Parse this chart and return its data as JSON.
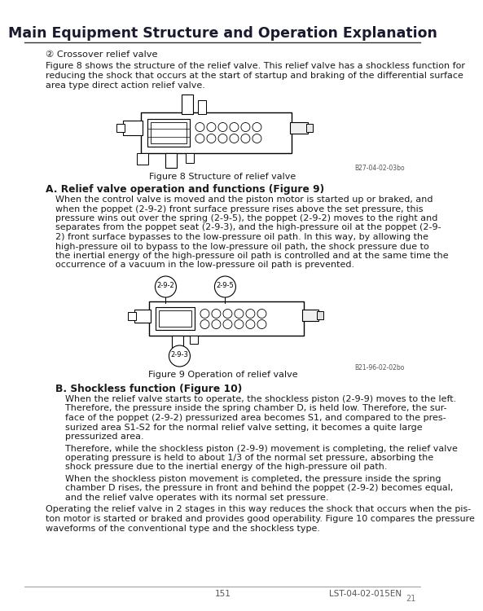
{
  "title": "Main Equipment Structure and Operation Explanation",
  "bg_color": "#ffffff",
  "text_color": "#1a1a1a",
  "title_color": "#1a1a2e",
  "page_number": "151",
  "doc_ref": "LST-04-02-015EN",
  "page_num_right": "21",
  "section_number": "② Crossover relief valve",
  "para1_line1": "Figure 8 shows the structure of the relief valve. This relief valve has a shockless function for",
  "para1_line2": "reducing the shock that occurs at the start of startup and braking of the differential surface",
  "para1_line3": "area type direct action relief valve.",
  "fig8_caption": "Figure 8 Structure of relief valve",
  "fig8_ref": "B27-04-02-03bo",
  "section_A_title": "A. Relief valve operation and functions (Figure 9)",
  "secA_lines": [
    "When the control valve is moved and the piston motor is started up or braked, and",
    "when the poppet (2-9-2) front surface pressure rises above the set pressure, this",
    "pressure wins out over the spring (2-9-5), the poppet (2-9-2) moves to the right and",
    "separates from the poppet seat (2-9-3), and the high-pressure oil at the poppet (2-9-",
    "2) front surface bypasses to the low-pressure oil path. In this way, by allowing the",
    "high-pressure oil to bypass to the low-pressure oil path, the shock pressure due to",
    "the inertial energy of the high-pressure oil path is controlled and at the same time the",
    "occurrence of a vacuum in the low-pressure oil path is prevented."
  ],
  "fig9_caption": "Figure 9 Operation of relief valve",
  "fig9_ref": "B21-96-02-02bo",
  "section_B_title": "B. Shockless function (Figure 10)",
  "secB_lines1": [
    "When the relief valve starts to operate, the shockless piston (2-9-9) moves to the left.",
    "Therefore, the pressure inside the spring chamber D, is held low. Therefore, the sur-",
    "face of the poppet (2-9-2) pressurized area becomes S1, and compared to the pres-",
    "surized area S1-S2 for the normal relief valve setting, it becomes a quite large",
    "pressurized area."
  ],
  "secB_lines2": [
    "Therefore, while the shockless piston (2-9-9) movement is completing, the relief valve",
    "operating pressure is held to about 1/3 of the normal set pressure, absorbing the",
    "shock pressure due to the inertial energy of the high-pressure oil path."
  ],
  "secB_lines3": [
    "When the shockless piston movement is completed, the pressure inside the spring",
    "chamber D rises, the pressure in front and behind the poppet (2-9-2) becomes equal,",
    "and the relief valve operates with its normal set pressure."
  ],
  "secB_lines4": [
    "Operating the relief valve in 2 stages in this way reduces the shock that occurs when the pis-",
    "ton motor is started or braked and provides good operability. Figure 10 compares the pressure",
    "waveforms of the conventional type and the shockless type."
  ]
}
